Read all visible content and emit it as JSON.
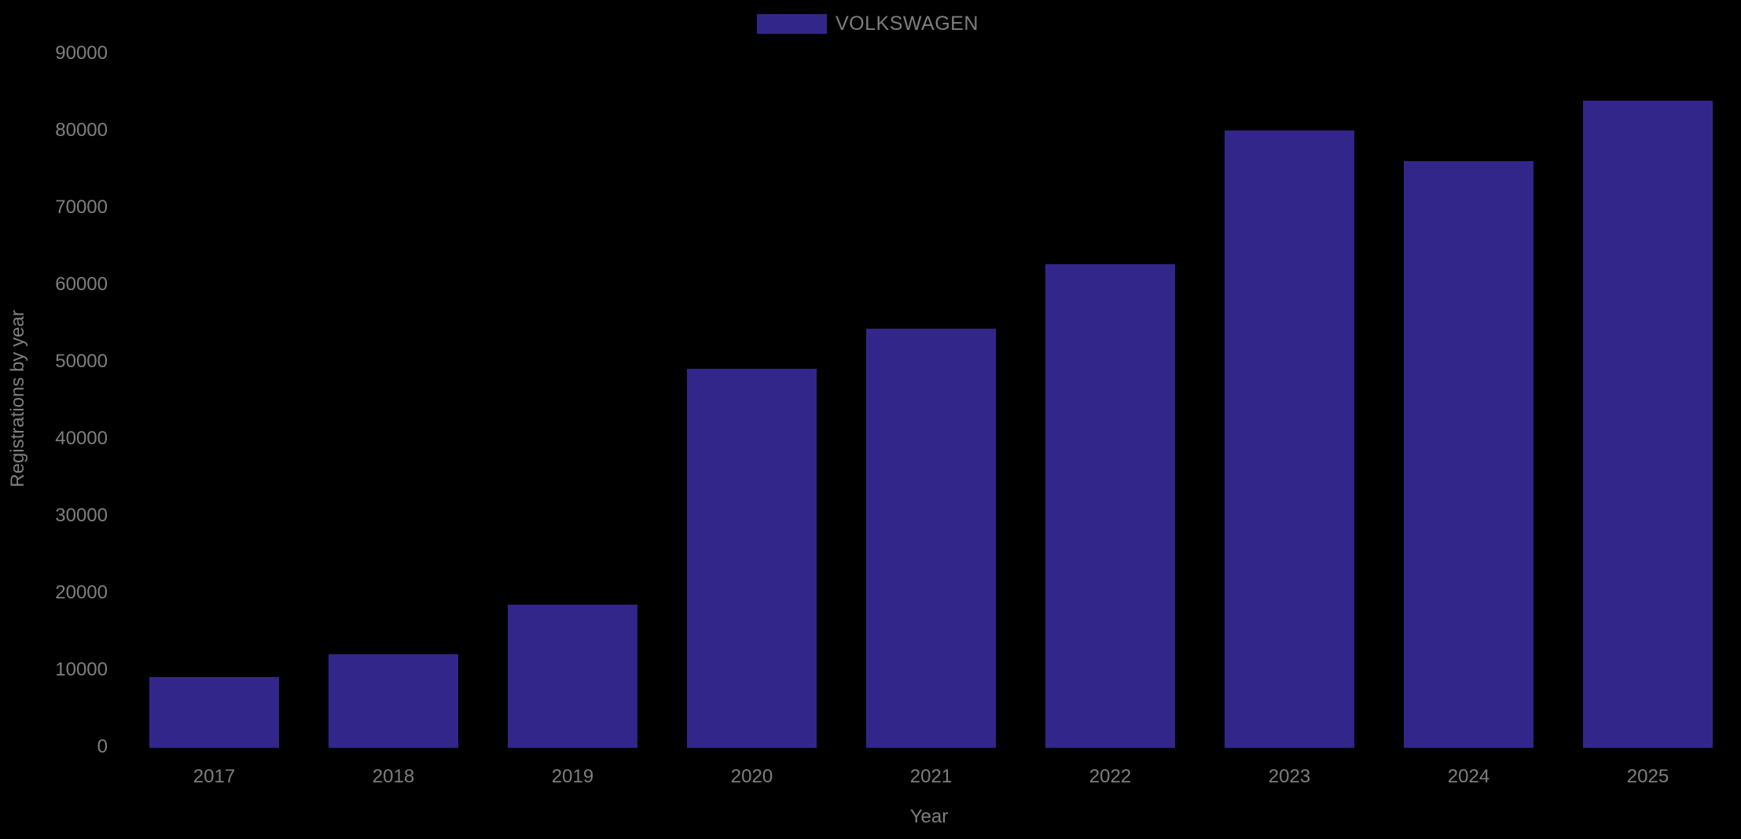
{
  "chart_data": {
    "type": "bar",
    "title": "",
    "categories": [
      "2017",
      "2018",
      "2019",
      "2020",
      "2021",
      "2022",
      "2023",
      "2024",
      "2025"
    ],
    "series": [
      {
        "name": "VOLKSWAGEN",
        "values": [
          9200,
          12100,
          18600,
          49200,
          54400,
          62800,
          80100,
          76100,
          84000
        ]
      }
    ],
    "xlabel": "Year",
    "ylabel": "Registrations by year",
    "ylim": [
      0,
      90000
    ],
    "yticks": [
      0,
      10000,
      20000,
      30000,
      40000,
      50000,
      60000,
      70000,
      80000,
      90000
    ],
    "grid": false,
    "legend_position": "top-center",
    "colors": {
      "bar": "#33268B",
      "background": "#000000",
      "text": "#7f7f7f"
    }
  }
}
